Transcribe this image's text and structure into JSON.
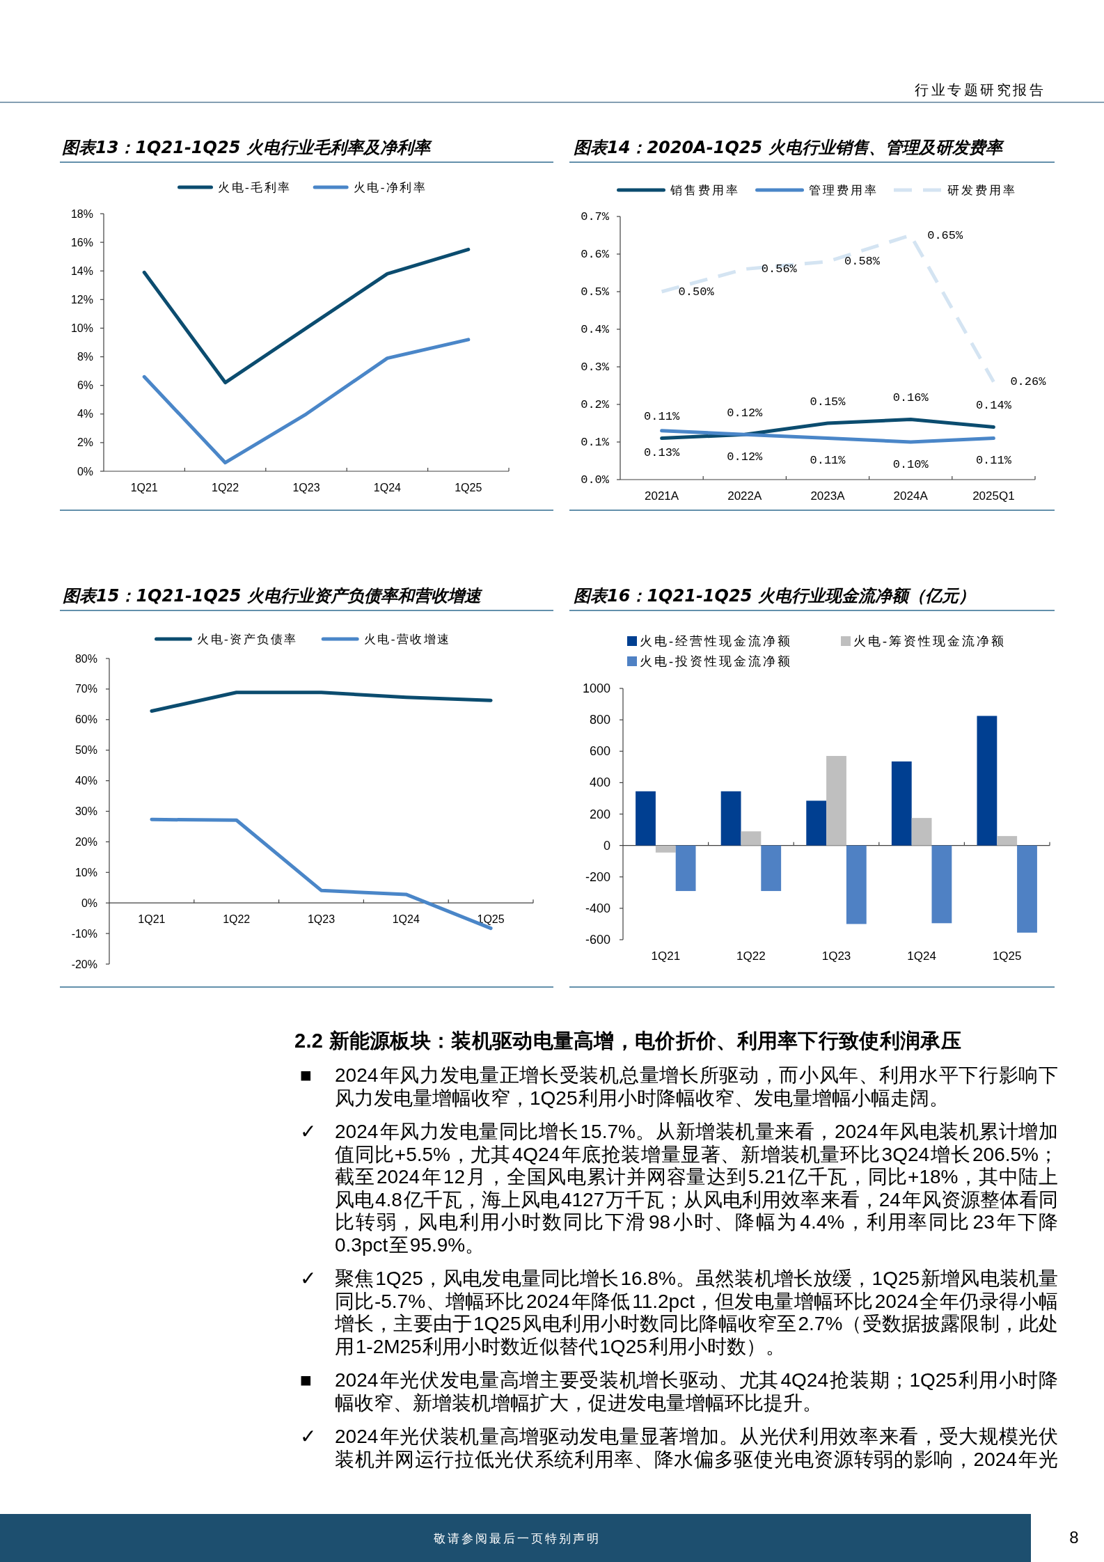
{
  "chart_data": [
    {
      "type": "other",
      "annotations": [
        "行业专题研究报告"
      ]
    },
    {
      "type": "line",
      "title": "图表13：1Q21-1Q25 火电行业毛利率及净利率",
      "categories": [
        "1Q21",
        "1Q22",
        "1Q23",
        "1Q24",
        "1Q25"
      ],
      "series": [
        {
          "name": "火电-毛利率",
          "color": "#0b4c6f",
          "values": [
            13.9,
            6.2,
            10.0,
            13.8,
            15.5
          ]
        },
        {
          "name": "火电-净利率",
          "color": "#4a86c8",
          "values": [
            6.6,
            0.6,
            4.0,
            7.9,
            9.2
          ]
        }
      ],
      "ylim": [
        0,
        18
      ],
      "yticks": [
        {
          "value": 0,
          "label": "0%"
        },
        {
          "value": 2,
          "label": "2%"
        },
        {
          "value": 4,
          "label": "4%"
        },
        {
          "value": 6,
          "label": "6%"
        },
        {
          "value": 8,
          "label": "8%"
        },
        {
          "value": 10,
          "label": "10%"
        },
        {
          "value": 12,
          "label": "12%"
        },
        {
          "value": 14,
          "label": "14%"
        },
        {
          "value": 16,
          "label": "16%"
        },
        {
          "value": 18,
          "label": "18%"
        }
      ],
      "legend": "top"
    },
    {
      "type": "line",
      "title": "图表14：2020A-1Q25 火电行业销售、管理及研发费率",
      "categories": [
        "2021A",
        "2022A",
        "2023A",
        "2024A",
        "2025Q1"
      ],
      "series": [
        {
          "name": "销售费用率",
          "color": "#0b4c6f",
          "values": [
            0.11,
            0.12,
            0.15,
            0.16,
            0.14
          ],
          "value_labels": [
            "0.11%",
            "0.12%",
            "0.15%",
            "0.16%",
            "0.14%"
          ]
        },
        {
          "name": "管理费用率",
          "color": "#4a86c8",
          "values": [
            0.13,
            0.12,
            0.11,
            0.1,
            0.11
          ],
          "value_labels": [
            "0.13%",
            "0.12%",
            "0.11%",
            "0.10%",
            "0.11%"
          ]
        },
        {
          "name": "研发费用率",
          "color": "#d4e4f2",
          "line_style": "dashed",
          "values": [
            0.5,
            0.56,
            0.58,
            0.65,
            0.26
          ],
          "value_labels": [
            "0.50%",
            "0.56%",
            "0.58%",
            "0.65%",
            "0.26%"
          ]
        }
      ],
      "ylim": [
        0,
        0.7
      ],
      "yticks": [
        {
          "value": 0,
          "label": "0.0%"
        },
        {
          "value": 0.1,
          "label": "0.1%"
        },
        {
          "value": 0.2,
          "label": "0.2%"
        },
        {
          "value": 0.3,
          "label": "0.3%"
        },
        {
          "value": 0.4,
          "label": "0.4%"
        },
        {
          "value": 0.5,
          "label": "0.5%"
        },
        {
          "value": 0.6,
          "label": "0.6%"
        },
        {
          "value": 0.7,
          "label": "0.7%"
        }
      ],
      "legend": "top"
    },
    {
      "type": "line",
      "title": "图表15：1Q21-1Q25 火电行业资产负债率和营收增速",
      "categories": [
        "1Q21",
        "1Q22",
        "1Q23",
        "1Q24",
        "1Q25"
      ],
      "series": [
        {
          "name": "火电-资产负债率",
          "color": "#0b4c6f",
          "values": [
            62.8,
            68.9,
            68.9,
            67.3,
            66.3
          ]
        },
        {
          "name": "火电-营收增速",
          "color": "#4a86c8",
          "values": [
            27.3,
            27.1,
            4.1,
            2.8,
            -8.3
          ]
        }
      ],
      "ylim": [
        -20,
        80
      ],
      "yticks": [
        {
          "value": -20,
          "label": "-20%"
        },
        {
          "value": -10,
          "label": "-10%"
        },
        {
          "value": 0,
          "label": "0%"
        },
        {
          "value": 10,
          "label": "10%"
        },
        {
          "value": 20,
          "label": "20%"
        },
        {
          "value": 30,
          "label": "30%"
        },
        {
          "value": 40,
          "label": "40%"
        },
        {
          "value": 50,
          "label": "50%"
        },
        {
          "value": 60,
          "label": "60%"
        },
        {
          "value": 70,
          "label": "70%"
        },
        {
          "value": 80,
          "label": "80%"
        }
      ],
      "legend": "top"
    },
    {
      "type": "bar",
      "title": "图表16：1Q21-1Q25 火电行业现金流净额（亿元）",
      "categories": [
        "1Q21",
        "1Q22",
        "1Q23",
        "1Q24",
        "1Q25"
      ],
      "series": [
        {
          "name": "火电-经营性现金流净额",
          "color": "#003f91",
          "values": [
            345,
            345,
            285,
            535,
            825
          ]
        },
        {
          "name": "火电-筹资性现金流净额",
          "color": "#bfbfbf",
          "values": [
            -45,
            90,
            570,
            175,
            60
          ]
        },
        {
          "name": "火电-投资性现金流净额",
          "color": "#4f81c4",
          "values": [
            -290,
            -290,
            -500,
            -495,
            -555
          ]
        }
      ],
      "ylim": [
        -600,
        1000
      ],
      "yticks": [
        -600,
        -400,
        -200,
        0,
        200,
        400,
        600,
        800,
        1000
      ],
      "legend": "top"
    },
    {
      "type": "other",
      "title": "2.2 新能源板块：装机驱动电量高增，电价折价、利用率下行致使利润承压",
      "annotations": [
        "■ 2024 年风力发电量正增长受装机总量增长所驱动，而小风年、利用水平下行影响下风力发电量增幅收窄，1Q25 利用小时降幅收窄、发电量增幅小幅走阔。",
        "✓ 2024 年风力发电量同比增长 15.7%。从新增装机量来看，2024 年风电装机累计增加值同比+5.5%，尤其 4Q24 年底抢装增量显著、新增装机量环比 3Q24 增长 206.5%；截至 2024 年 12 月，全国风电累计并网容量达到 5.21 亿千瓦，同比+18%，其中陆上风电 4.8 亿千瓦，海上风电 4127 万千瓦；从风电利用效率来看，24 年风资源整体看同比转弱，风电利用小时数同比下滑 98 小时、降幅为 4.4%，利用率同比 23 年下降 0.3pct 至 95.9%。",
        "✓ 聚焦 1Q25，风电发电量同比增长 16.8%。虽然装机增长放缓，1Q25 新增风电装机量同比-5.7%、增幅环比 2024 年降低 11.2pct，但发电量增幅环比 2024 全年仍录得小幅增长，主要由于 1Q25 风电利用小时数同比降幅收窄至 2.7%（受数据披露限制，此处用 1-2M25 利用小时数近似替代 1Q25 利用小时数）。",
        "■ 2024 年光伏发电量高增主要受装机增长驱动、尤其 4Q24 抢装期；1Q25 利用小时降幅收窄、新增装机增幅扩大，促进发电量增幅环比提升。",
        "✓ 2024 年光伏装机量高增驱动发电量显著增加。从光伏利用效率来看，受大规模光伏装机并网运行拉低光伏系统利用率、降水偏多驱使光电资源转弱的影响，2024 年光"
      ]
    },
    {
      "type": "other",
      "annotations": [
        "敬请参阅最后一页特别声明",
        "8"
      ]
    }
  ]
}
